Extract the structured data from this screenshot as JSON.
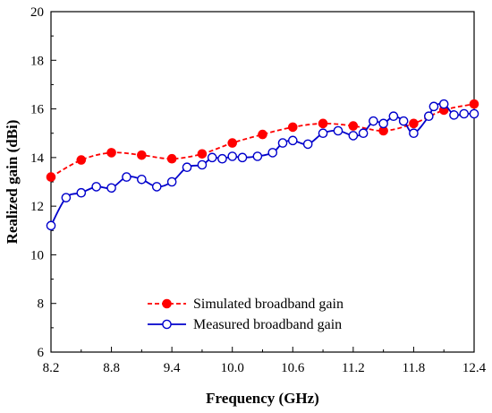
{
  "chart_data": {
    "type": "line",
    "xlabel": "Frequency (GHz)",
    "ylabel": "Realized gain (dBi)",
    "xlim": [
      8.2,
      12.4
    ],
    "ylim": [
      6,
      20
    ],
    "xticks": [
      8.2,
      8.8,
      9.4,
      10.0,
      10.6,
      11.2,
      11.8,
      12.4
    ],
    "xtick_labels": [
      "8.2",
      "8.8",
      "9.4",
      "10.0",
      "10.6",
      "11.2",
      "11.8",
      "12.4"
    ],
    "yticks": [
      6,
      8,
      10,
      12,
      14,
      16,
      18,
      20
    ],
    "ytick_labels": [
      "6",
      "8",
      "10",
      "12",
      "14",
      "16",
      "18",
      "20"
    ],
    "grid": false,
    "legend_position": "bottom-center",
    "series": [
      {
        "name": "Simulated broadband gain",
        "color": "#ff0000",
        "line_style": "dashed",
        "marker": "filled-circle",
        "x": [
          8.2,
          8.5,
          8.8,
          9.1,
          9.4,
          9.7,
          10.0,
          10.3,
          10.6,
          10.9,
          11.2,
          11.5,
          11.8,
          12.1,
          12.4
        ],
        "y": [
          13.2,
          13.9,
          14.2,
          14.1,
          13.95,
          14.15,
          14.6,
          14.95,
          15.25,
          15.4,
          15.3,
          15.1,
          15.4,
          15.95,
          16.2
        ]
      },
      {
        "name": "Measured broadband gain",
        "color": "#0000cc",
        "line_style": "solid",
        "marker": "open-circle",
        "x": [
          8.2,
          8.35,
          8.5,
          8.65,
          8.8,
          8.95,
          9.1,
          9.25,
          9.4,
          9.55,
          9.7,
          9.8,
          9.9,
          10.0,
          10.1,
          10.25,
          10.4,
          10.5,
          10.6,
          10.75,
          10.9,
          11.05,
          11.2,
          11.3,
          11.4,
          11.5,
          11.6,
          11.7,
          11.8,
          11.95,
          12.0,
          12.1,
          12.2,
          12.3,
          12.4
        ],
        "y": [
          11.2,
          12.35,
          12.55,
          12.8,
          12.75,
          13.2,
          13.1,
          12.8,
          13.0,
          13.6,
          13.7,
          14.0,
          13.95,
          14.05,
          14.0,
          14.05,
          14.2,
          14.6,
          14.7,
          14.55,
          15.0,
          15.1,
          14.9,
          15.0,
          15.5,
          15.4,
          15.7,
          15.5,
          15.0,
          15.7,
          16.1,
          16.2,
          15.75,
          15.8,
          15.8
        ]
      }
    ]
  }
}
